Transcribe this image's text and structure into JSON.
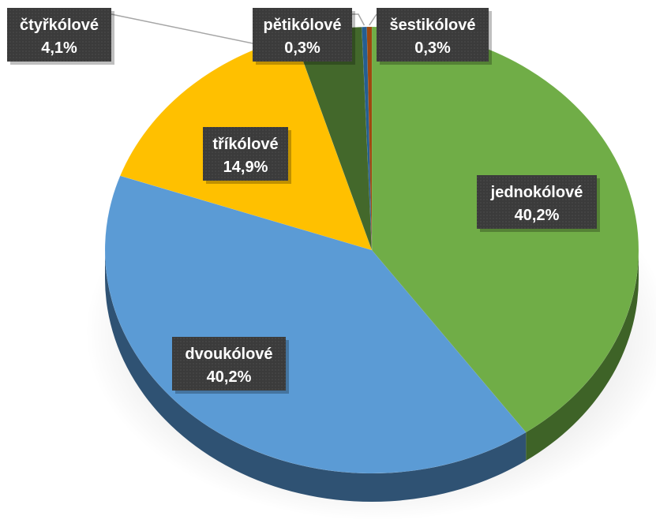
{
  "chart_data": {
    "type": "pie",
    "title": "",
    "slices": [
      {
        "name": "jednokólové",
        "value": 40.2,
        "label": "40,2%",
        "color": "#70ad47",
        "side": "#3e6327"
      },
      {
        "name": "dvoukólové",
        "value": 40.2,
        "label": "40,2%",
        "color": "#5b9bd5",
        "side": "#2f5273"
      },
      {
        "name": "tříkólové",
        "value": 14.9,
        "label": "14,9%",
        "color": "#ffc000",
        "side": "#9a7400"
      },
      {
        "name": "čtyřkólové",
        "value": 4.1,
        "label": "4,1%",
        "color": "#43682b",
        "side": "#263c18"
      },
      {
        "name": "pětikólové",
        "value": 0.3,
        "label": "0,3%",
        "color": "#255e91",
        "side": "#16395a"
      },
      {
        "name": "šestikólové",
        "value": 0.3,
        "label": "0,3%",
        "color": "#9e480e",
        "side": "#5c2a08"
      }
    ],
    "style": "3d",
    "label_colors": {
      "background": "#3b3b3b",
      "text": "#ffffff"
    }
  }
}
